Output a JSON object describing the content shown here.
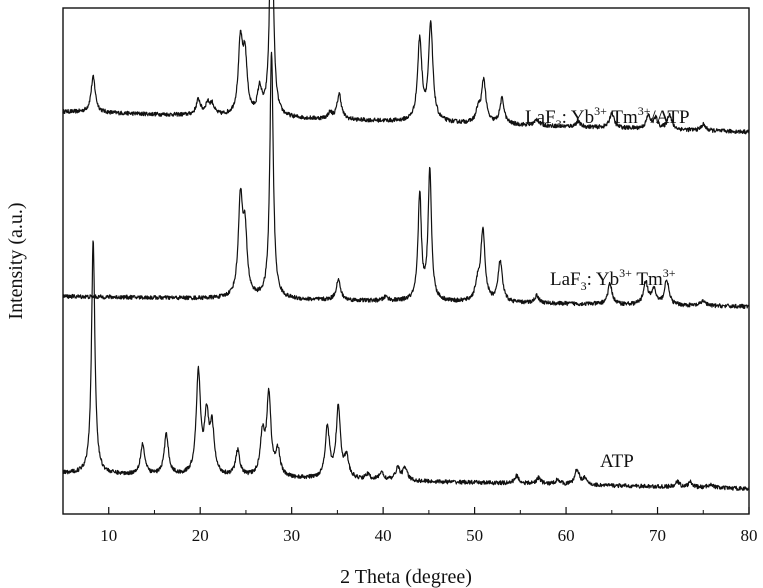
{
  "chart_data": {
    "type": "line",
    "xlabel": "2 Theta (degree)",
    "ylabel": "Intensity (a.u.)",
    "xlim": [
      5,
      80
    ],
    "x_ticks": [
      10,
      20,
      30,
      40,
      50,
      60,
      70,
      80
    ],
    "y_ticks_shown": false,
    "grid": false,
    "legend": "none (inline series labels at right)",
    "series": [
      {
        "name": "LaF3: Yb3+ Tm3+/ATP",
        "label_parts": {
          "base": "LaF",
          "sub": "3",
          "rest1": ": Yb",
          "sup1": "3+",
          "rest2": " Tm",
          "sup2": "3+",
          "rest3": "/ATP"
        },
        "offset": 0.74,
        "baseline_start": 0.055,
        "baseline_end": 0.015,
        "peaks": [
          [
            8.3,
            0.07
          ],
          [
            19.8,
            0.03
          ],
          [
            20.8,
            0.022
          ],
          [
            21.3,
            0.02
          ],
          [
            24.4,
            0.14
          ],
          [
            24.9,
            0.11
          ],
          [
            26.5,
            0.05
          ],
          [
            27.8,
            0.47
          ],
          [
            34.2,
            0.012
          ],
          [
            35.2,
            0.05
          ],
          [
            44.0,
            0.16
          ],
          [
            45.2,
            0.19
          ],
          [
            50.4,
            0.025
          ],
          [
            51.0,
            0.085
          ],
          [
            53.0,
            0.05
          ],
          [
            56.8,
            0.012
          ],
          [
            61.3,
            0.01
          ],
          [
            65.0,
            0.03
          ],
          [
            69.0,
            0.025
          ],
          [
            69.8,
            0.02
          ],
          [
            71.3,
            0.03
          ],
          [
            75.0,
            0.012
          ]
        ]
      },
      {
        "name": "LaF3: Yb3+ Tm3+",
        "label_parts": {
          "base": "LaF",
          "sub": "3",
          "rest1": ": Yb",
          "sup1": "3+",
          "rest2": " Tm",
          "sup2": "3+",
          "rest3": ""
        },
        "offset": 0.41,
        "baseline_start": 0.02,
        "baseline_end": 0.0,
        "peaks": [
          [
            24.4,
            0.19
          ],
          [
            24.9,
            0.12
          ],
          [
            27.8,
            0.49
          ],
          [
            35.1,
            0.04
          ],
          [
            40.3,
            0.008
          ],
          [
            44.0,
            0.21
          ],
          [
            45.1,
            0.26
          ],
          [
            50.3,
            0.03
          ],
          [
            50.9,
            0.14
          ],
          [
            52.8,
            0.08
          ],
          [
            56.8,
            0.015
          ],
          [
            64.8,
            0.04
          ],
          [
            68.7,
            0.045
          ],
          [
            69.6,
            0.03
          ],
          [
            71.0,
            0.05
          ],
          [
            75.0,
            0.01
          ]
        ]
      },
      {
        "name": "ATP",
        "label_parts": {
          "base": "ATP",
          "sub": "",
          "rest1": "",
          "sup1": "",
          "rest2": "",
          "sup2": "",
          "rest3": ""
        },
        "offset": 0.05,
        "baseline_start": 0.03,
        "baseline_end": 0.0,
        "peaks": [
          [
            8.3,
            0.46
          ],
          [
            13.7,
            0.06
          ],
          [
            16.3,
            0.08
          ],
          [
            19.8,
            0.2
          ],
          [
            20.7,
            0.11
          ],
          [
            21.3,
            0.09
          ],
          [
            24.1,
            0.05
          ],
          [
            26.8,
            0.08
          ],
          [
            27.5,
            0.16
          ],
          [
            28.5,
            0.05
          ],
          [
            33.9,
            0.1
          ],
          [
            35.1,
            0.14
          ],
          [
            36.0,
            0.04
          ],
          [
            38.3,
            0.01
          ],
          [
            39.8,
            0.015
          ],
          [
            41.6,
            0.025
          ],
          [
            42.4,
            0.025
          ],
          [
            54.6,
            0.015
          ],
          [
            57.0,
            0.012
          ],
          [
            59.1,
            0.01
          ],
          [
            61.2,
            0.03
          ],
          [
            62.0,
            0.012
          ],
          [
            72.2,
            0.01
          ],
          [
            73.6,
            0.01
          ],
          [
            75.8,
            0.008
          ]
        ]
      }
    ]
  }
}
